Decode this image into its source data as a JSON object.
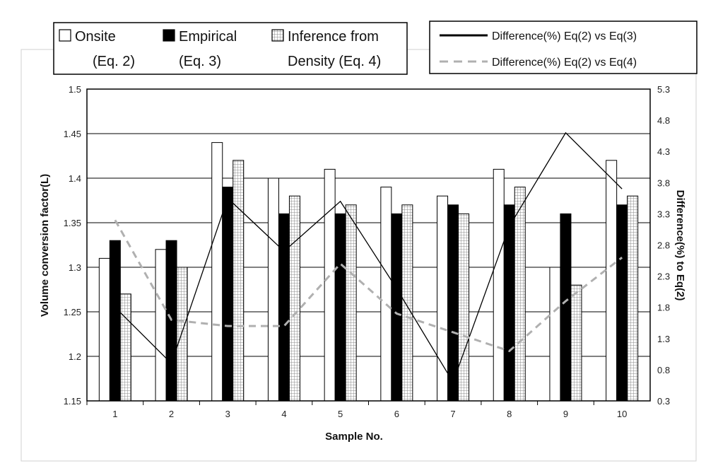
{
  "chart_data": {
    "type": "bar",
    "categories": [
      "1",
      "2",
      "3",
      "4",
      "5",
      "6",
      "7",
      "8",
      "9",
      "10"
    ],
    "series": [
      {
        "name_line1": "Onsite",
        "name_line2": "(Eq. 2)",
        "kind": "bar",
        "axis": "left",
        "fill": "#ffffff",
        "values": [
          1.31,
          1.32,
          1.44,
          1.4,
          1.41,
          1.39,
          1.38,
          1.41,
          1.3,
          1.42
        ]
      },
      {
        "name_line1": "Empirical",
        "name_line2": "(Eq. 3)",
        "kind": "bar",
        "axis": "left",
        "fill": "#000000",
        "values": [
          1.33,
          1.33,
          1.39,
          1.36,
          1.36,
          1.36,
          1.37,
          1.37,
          1.36,
          1.37
        ]
      },
      {
        "name_line1": "Inference from",
        "name_line2": "Density (Eq. 4)",
        "kind": "bar",
        "axis": "left",
        "fill": "grid",
        "values": [
          1.27,
          1.3,
          1.42,
          1.38,
          1.37,
          1.37,
          1.36,
          1.39,
          1.28,
          1.38
        ]
      },
      {
        "name": "Difference(%) Eq(2) vs Eq(3)",
        "kind": "line",
        "axis": "right",
        "stroke": "#000000",
        "dash": "solid",
        "values": [
          1.8,
          0.9,
          3.55,
          2.7,
          3.5,
          2.1,
          0.6,
          3.1,
          4.6,
          3.7
        ]
      },
      {
        "name": "Difference(%) Eq(2) vs Eq(4)",
        "kind": "line",
        "axis": "right",
        "stroke": "#b0b0b0",
        "dash": "dashed",
        "values": [
          3.2,
          1.6,
          1.5,
          1.5,
          2.5,
          1.7,
          1.4,
          1.1,
          1.9,
          2.6
        ]
      }
    ],
    "xlabel": "Sample No.",
    "ylabel": "Volume conversion factor(L)",
    "y2label": "Difference(%) to Eq(2)",
    "ylim": [
      1.15,
      1.5
    ],
    "yticks": [
      "1.15",
      "1.2",
      "1.25",
      "1.3",
      "1.35",
      "1.4",
      "1.45",
      "1.5"
    ],
    "y2lim": [
      0.3,
      5.3
    ],
    "y2ticks": [
      "0.3",
      "0.8",
      "1.3",
      "1.8",
      "2.3",
      "2.8",
      "3.3",
      "3.8",
      "4.3",
      "4.8",
      "5.3"
    ],
    "grid": "horizontal",
    "legend_bars_placement": "top-left",
    "legend_lines_placement": "top-right"
  }
}
